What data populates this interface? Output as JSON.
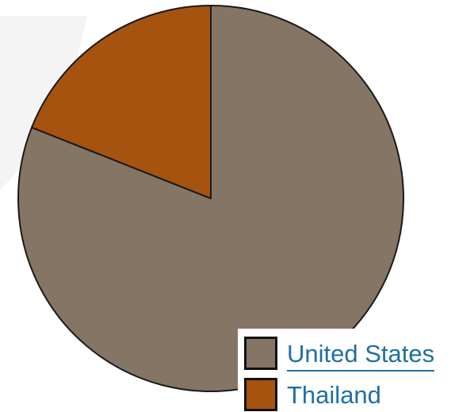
{
  "chart_data": {
    "type": "pie",
    "title": "",
    "slices": [
      {
        "label": "United States",
        "value": 81,
        "color": "#857565"
      },
      {
        "label": "Thailand",
        "value": 19,
        "color": "#a65310"
      }
    ],
    "start_angle_deg": 0,
    "direction": "clockwise",
    "legend": {
      "position": "bottom-right",
      "items": [
        {
          "label": "United States",
          "color": "#857565",
          "is_link": true
        },
        {
          "label": "Thailand",
          "color": "#a65310",
          "is_link": false
        }
      ]
    }
  }
}
